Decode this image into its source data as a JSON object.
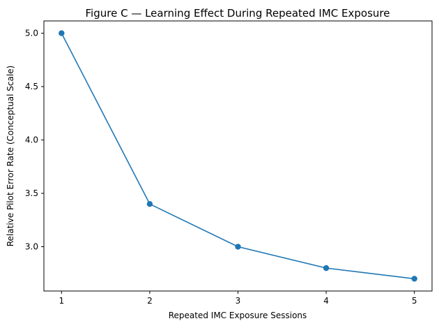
{
  "chart_data": {
    "type": "line",
    "title": "Figure C — Learning Effect During Repeated IMC Exposure",
    "xlabel": "Repeated IMC Exposure Sessions",
    "ylabel": "Relative Pilot Error Rate (Conceptual Scale)",
    "x": [
      1,
      2,
      3,
      4,
      5
    ],
    "series": [
      {
        "values": [
          5.0,
          3.4,
          3.0,
          2.8,
          2.7
        ]
      }
    ],
    "xlim": [
      0.8,
      5.2
    ],
    "ylim": [
      2.585,
      5.115
    ],
    "xticks": [
      1,
      2,
      3,
      4,
      5
    ],
    "yticks": [
      3.0,
      3.5,
      4.0,
      4.5,
      5.0
    ],
    "xtick_labels": [
      "1",
      "2",
      "3",
      "4",
      "5"
    ],
    "ytick_labels": [
      "3.0",
      "3.5",
      "4.0",
      "4.5",
      "5.0"
    ],
    "grid": false,
    "legend": "none",
    "line_color": "#1f77b4",
    "marker": "circle"
  }
}
